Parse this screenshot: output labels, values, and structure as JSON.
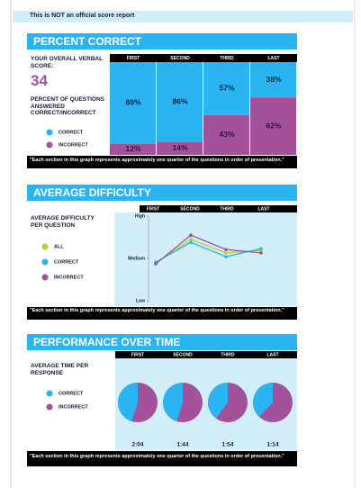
{
  "banner": "This is NOT an official score report",
  "percent_correct": {
    "title": "PERCENT CORRECT",
    "score_label": "YOUR OVERALL VERBAL SCORE:",
    "score": 34,
    "questions_label": "PERCENT OF QUESTIONS ANSWERED CORRECT/INCORRECT",
    "columns": [
      "FIRST",
      "SECOND",
      "THIRD",
      "LAST"
    ],
    "series": [
      {
        "name": "CORRECT",
        "color": "#2ab4f2",
        "values": [
          88,
          86,
          57,
          38
        ],
        "value_labels": [
          "88%",
          "86%",
          "57%",
          "38%"
        ]
      },
      {
        "name": "INCORRECT",
        "color": "#a3519b",
        "values": [
          12,
          14,
          43,
          62
        ],
        "value_labels": [
          "12%",
          "14%",
          "43%",
          "62%"
        ]
      }
    ],
    "footnote": "\"Each section in this graph represents approximately one quarter of the questions in order of presentation.\""
  },
  "average_difficulty": {
    "title": "AVERAGE DIFFICULTY",
    "y_label": "AVERAGE DIFFICULTY PER QUESTION",
    "columns": [
      "FIRST",
      "SECOND",
      "THIRD",
      "LAST"
    ],
    "ylim": [
      0,
      2
    ],
    "yticks": [
      {
        "value": 0,
        "label": "Low"
      },
      {
        "value": 1,
        "label": "Medium"
      },
      {
        "value": 2,
        "label": "High"
      }
    ],
    "series": [
      {
        "name": "ALL",
        "color": "#b8cf2f",
        "values": [
          0.89,
          1.45,
          1.13,
          1.19
        ]
      },
      {
        "name": "CORRECT",
        "color": "#2ab4f2",
        "values": [
          0.91,
          1.38,
          1.04,
          1.23
        ]
      },
      {
        "name": "INCORRECT",
        "color": "#a3519b",
        "values": [
          0.87,
          1.55,
          1.21,
          1.13
        ]
      }
    ],
    "footnote": "\"Each section in this graph represents approximately one quarter of the questions in order of presentation.\""
  },
  "performance_over_time": {
    "title": "PERFORMANCE OVER TIME",
    "y_label": "AVERAGE TIME PER RESPONSE",
    "columns": [
      "FIRST",
      "SECOND",
      "THIRD",
      "LAST"
    ],
    "legend": [
      {
        "name": "CORRECT",
        "color": "#2ab4f2"
      },
      {
        "name": "INCORRECT",
        "color": "#a3519b"
      }
    ],
    "correct_share": [
      45,
      45,
      40,
      38
    ],
    "times": [
      "2:04",
      "1:44",
      "1:54",
      "1:14"
    ],
    "footnote": "\"Each section in this graph represents approximately one quarter of the questions in order of presentation.\""
  }
}
